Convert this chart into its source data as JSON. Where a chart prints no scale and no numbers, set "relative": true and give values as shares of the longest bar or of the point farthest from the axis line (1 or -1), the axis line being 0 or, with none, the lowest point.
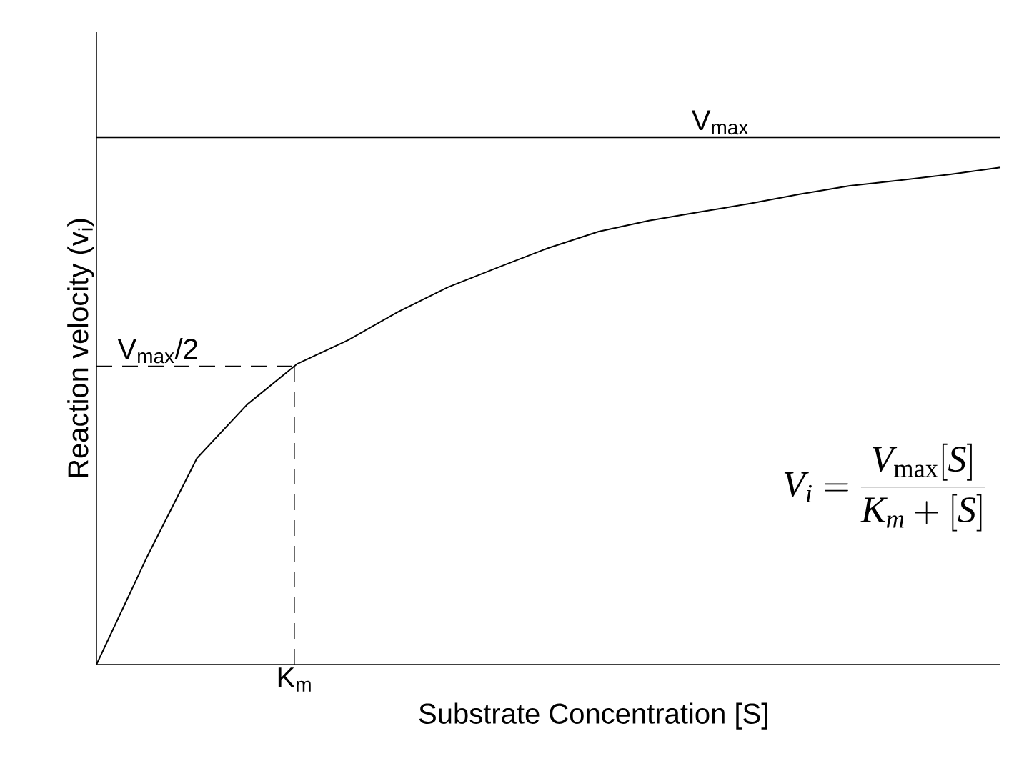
{
  "chart_data": {
    "type": "line",
    "relative": true,
    "xlabel": "Substrate Concentration [S]",
    "ylabel": "Reaction velocity (v$_{i}$)",
    "categories": [
      null,
      null,
      null,
      null,
      null,
      null,
      null,
      null,
      null,
      null,
      null,
      null,
      null,
      null,
      null,
      null,
      null,
      null,
      null
    ],
    "series": [
      {
        "color": "#000000",
        "values": [
          0,
          0.215,
          0.415,
          0.523,
          0.605,
          0.652,
          0.709,
          0.759,
          0.799,
          0.838,
          0.871,
          0.893,
          0.91,
          0.927,
          0.946,
          0.963,
          0.974,
          0.986,
          1.0
        ]
      }
    ],
    "marker": "none",
    "line_style": "solid",
    "ref_lines": [
      {
        "axis": "y",
        "value": 1.06,
        "label": "V$_{max}$",
        "line_style": "solid",
        "color": "#000000"
      },
      {
        "axis": "y",
        "value": 0.6,
        "label": "V$_{max}$/2",
        "line_style": "dashed",
        "color": "#000000"
      }
    ],
    "annotations": [
      "V_i = \\frac{V_{\\mathrm{max}}[S]}{K_m + [S]}",
      "K$_{m}$"
    ]
  }
}
